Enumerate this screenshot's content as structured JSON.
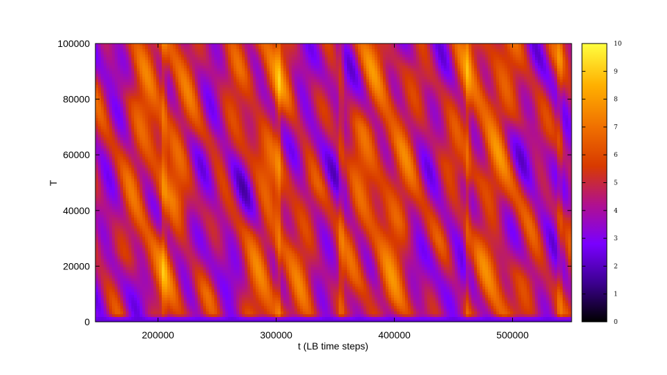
{
  "chart_data": {
    "type": "heatmap",
    "title": "",
    "xlabel": "t (LB time steps)",
    "ylabel": "T",
    "xlim": [
      147000,
      550000
    ],
    "ylim": [
      0,
      100000
    ],
    "x_ticks": [
      {
        "value": 200000,
        "label": "200000"
      },
      {
        "value": 300000,
        "label": "300000"
      },
      {
        "value": 400000,
        "label": "400000"
      },
      {
        "value": 500000,
        "label": "500000"
      }
    ],
    "y_ticks": [
      {
        "value": 0,
        "label": "0"
      },
      {
        "value": 20000,
        "label": "20000"
      },
      {
        "value": 40000,
        "label": "40000"
      },
      {
        "value": 60000,
        "label": "60000"
      },
      {
        "value": 80000,
        "label": "80000"
      },
      {
        "value": 100000,
        "label": "100000"
      }
    ],
    "colorbar": {
      "range": [
        0,
        10
      ],
      "ticks": [
        {
          "value": 0,
          "label": "0"
        },
        {
          "value": 1,
          "label": "1"
        },
        {
          "value": 2,
          "label": "2"
        },
        {
          "value": 3,
          "label": "3"
        },
        {
          "value": 4,
          "label": "4"
        },
        {
          "value": 5,
          "label": "5"
        },
        {
          "value": 6,
          "label": "6"
        },
        {
          "value": 7,
          "label": "7"
        },
        {
          "value": 8,
          "label": "8"
        },
        {
          "value": 9,
          "label": "9"
        },
        {
          "value": 10,
          "label": "10"
        }
      ],
      "palette": [
        "#000000",
        "#3c0090",
        "#7a00ff",
        "#b01090",
        "#d83a00",
        "#f07000",
        "#ffb000",
        "#ffff40"
      ]
    },
    "field_description": "diagonal streaks descending toward increasing t; values mostly 4-8 with a low band (~2) near T=0",
    "streak_slope_t_per_T": 0.6,
    "base_level": 5.2,
    "low_band_T_max": 2500,
    "low_band_value": 2.3,
    "bright_vertical_lines_t": [
      205000,
      302000,
      355000,
      462000,
      540000
    ]
  }
}
